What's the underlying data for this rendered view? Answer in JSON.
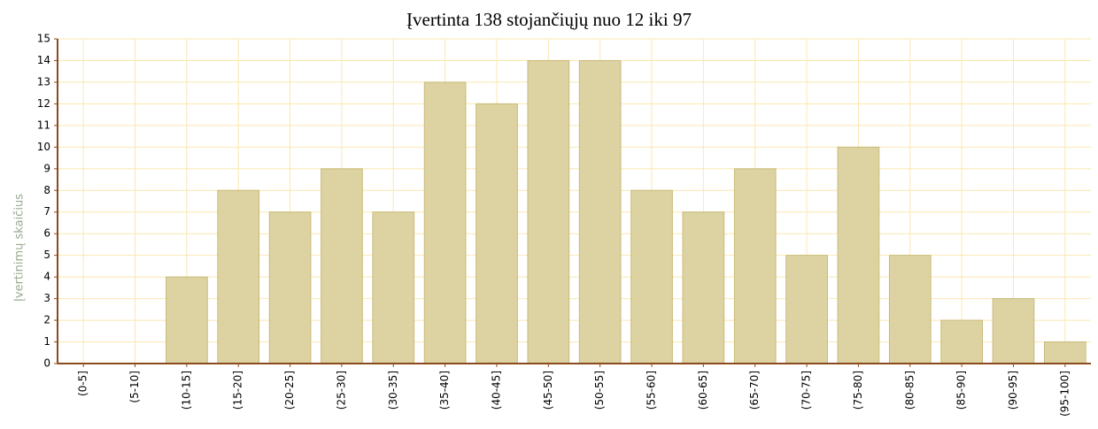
{
  "chart_data": {
    "type": "bar",
    "title": "Įvertinta 138 stojančiųjų nuo 12 iki 97",
    "y_label": "Įvertinimų skaičius",
    "categories": [
      "(0-5]",
      "(5-10]",
      "(10-15]",
      "(15-20]",
      "(20-25]",
      "(25-30]",
      "(30-35]",
      "(35-40]",
      "(40-45]",
      "(45-50]",
      "(50-55]",
      "(55-60]",
      "(60-65]",
      "(65-70]",
      "(70-75]",
      "(75-80]",
      "(80-85]",
      "(85-90]",
      "(90-95]",
      "(95-100]"
    ],
    "values": [
      0,
      0,
      4,
      8,
      7,
      9,
      7,
      13,
      12,
      14,
      14,
      8,
      7,
      9,
      5,
      10,
      5,
      2,
      3,
      1
    ],
    "color": "#ddd3a2",
    "ylim": [
      0,
      15
    ],
    "yticks": [
      0,
      1,
      2,
      3,
      4,
      5,
      6,
      7,
      8,
      9,
      10,
      11,
      12,
      13,
      14,
      15
    ],
    "grid": true
  }
}
